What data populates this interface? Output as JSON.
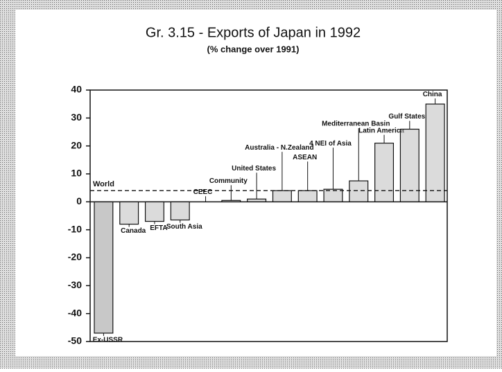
{
  "chart_data": {
    "type": "bar",
    "title": "Gr. 3.15 - Exports of Japan in 1992",
    "subtitle": "(% change over 1991)",
    "categories": [
      "Ex-USSR",
      "Canada",
      "EFTA",
      "South Asia",
      "CEEC",
      "Community",
      "United States",
      "Australia - N.Zealand",
      "ASEAN",
      "4 NEI of Asia",
      "Mediterranean Basin",
      "Latin America",
      "Gulf States",
      "China"
    ],
    "values": [
      -47,
      -8,
      -7,
      -6.5,
      0,
      0.5,
      1,
      4,
      4,
      4.5,
      7.5,
      21,
      26,
      35
    ],
    "color": "#bdbdbd",
    "reference": {
      "label": "World",
      "value": 4
    },
    "ylim": [
      -50,
      40
    ],
    "yticks": [
      -50,
      -40,
      -30,
      -20,
      -10,
      0,
      10,
      20,
      30,
      40
    ]
  }
}
